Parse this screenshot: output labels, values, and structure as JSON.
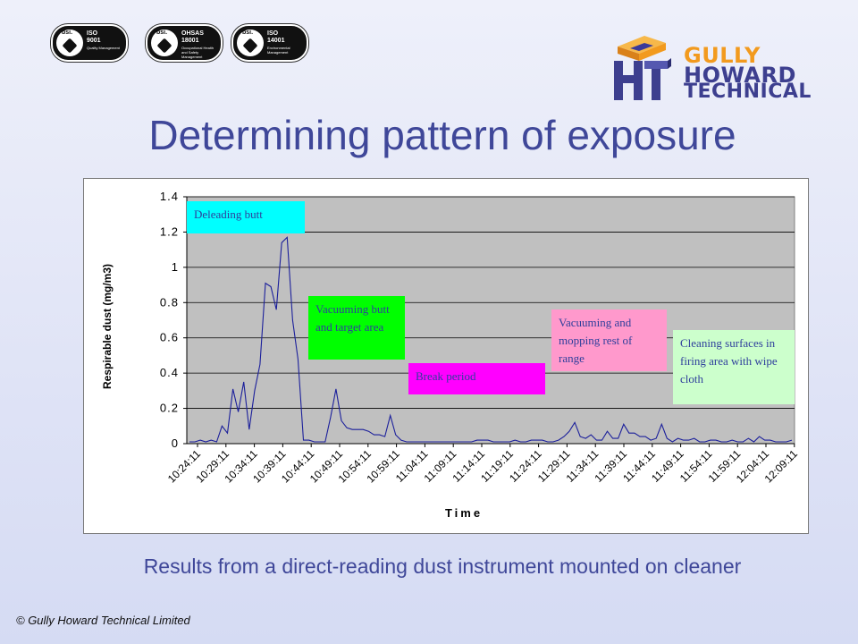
{
  "slide": {
    "title": "Determining pattern of exposure",
    "subtitle": "Results from a direct-reading dust instrument mounted on cleaner",
    "copyright": "© Gully Howard Technical Limited"
  },
  "certifications": [
    {
      "brand": "bsi.",
      "code": "ISO\n9001",
      "text": "Quality Management"
    },
    {
      "brand": "bsi.",
      "code": "OHSAS\n18001",
      "text": "Occupational Health and Safety Management"
    },
    {
      "brand": "bsi.",
      "code": "ISO\n14001",
      "text": "Environmental Management"
    }
  ],
  "logo": {
    "line1": "GULLY",
    "line2": "HOWARD",
    "line3": "TECHNICAL",
    "colors": {
      "orange": "#f29a1e",
      "navy": "#3d3f8f"
    }
  },
  "chart_data": {
    "type": "line",
    "title": "",
    "xlabel": "Time",
    "ylabel": "Respirable dust (mg/m3)",
    "ylim": [
      0,
      1.4
    ],
    "yticks": [
      "0",
      "0.2",
      "0.4",
      "0.6",
      "0.8",
      "1",
      "1.2",
      "1.4"
    ],
    "grid": true,
    "line_color": "#1b1f9b",
    "plot_background": "#c0c0c0",
    "x_tick_labels": [
      "10:24:11",
      "10:29:11",
      "10:34:11",
      "10:39:11",
      "10:44:11",
      "10:49:11",
      "10:54:11",
      "10:59:11",
      "11:04:11",
      "11:09:11",
      "11:14:11",
      "11:19:11",
      "11:24:11",
      "11:29:11",
      "11:34:11",
      "11:39:11",
      "11:44:11",
      "11:49:11",
      "11:54:11",
      "11:59:11",
      "12:04:11",
      "12:09:11"
    ],
    "series": [
      {
        "values": [
          0.01,
          0.01,
          0.02,
          0.01,
          0.02,
          0.01,
          0.1,
          0.06,
          0.31,
          0.18,
          0.35,
          0.08,
          0.3,
          0.45,
          0.91,
          0.89,
          0.76,
          1.14,
          1.17,
          0.7,
          0.48,
          0.02,
          0.02,
          0.01,
          0.01,
          0.01,
          0.15,
          0.31,
          0.13,
          0.09,
          0.08,
          0.08,
          0.08,
          0.07,
          0.05,
          0.05,
          0.04,
          0.16,
          0.05,
          0.02,
          0.01,
          0.01,
          0.01,
          0.01,
          0.01,
          0.01,
          0.01,
          0.01,
          0.01,
          0.01,
          0.01,
          0.01,
          0.01,
          0.02,
          0.02,
          0.02,
          0.01,
          0.01,
          0.01,
          0.01,
          0.02,
          0.01,
          0.01,
          0.02,
          0.02,
          0.02,
          0.01,
          0.01,
          0.02,
          0.04,
          0.07,
          0.12,
          0.04,
          0.03,
          0.05,
          0.02,
          0.02,
          0.07,
          0.03,
          0.03,
          0.11,
          0.06,
          0.06,
          0.04,
          0.04,
          0.02,
          0.03,
          0.11,
          0.03,
          0.01,
          0.03,
          0.02,
          0.02,
          0.03,
          0.01,
          0.01,
          0.02,
          0.02,
          0.01,
          0.01,
          0.02,
          0.01,
          0.01,
          0.03,
          0.01,
          0.04,
          0.02,
          0.02,
          0.01,
          0.01,
          0.01,
          0.02
        ]
      }
    ],
    "annotations": [
      {
        "text": "Deleading butt",
        "color": "#00ffff"
      },
      {
        "text": "Vacuuming butt and target area",
        "color": "#00ff00"
      },
      {
        "text": "Break period",
        "color": "#ff00ff"
      },
      {
        "text": "Vacuuming and mopping rest of range",
        "color": "#ff99cc"
      },
      {
        "text": "Cleaning surfaces in firing area with wipe cloth",
        "color": "#ccffcc"
      }
    ]
  }
}
